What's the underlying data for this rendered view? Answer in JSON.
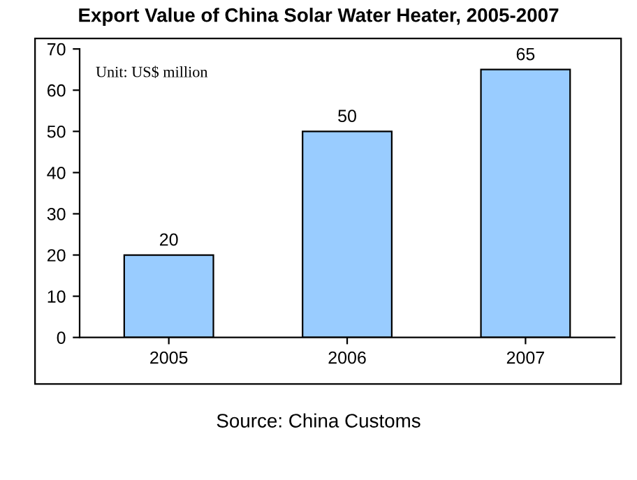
{
  "chart_data": {
    "type": "bar",
    "title": "Export Value of China Solar Water Heater, 2005-2007",
    "categories": [
      "2005",
      "2006",
      "2007"
    ],
    "values": [
      20,
      50,
      65
    ],
    "color": "#99ccff",
    "data_labels": true,
    "ylim": [
      0,
      70
    ],
    "yticks": [
      0,
      10,
      20,
      30,
      40,
      50,
      60,
      70
    ],
    "grid": false,
    "legend": false,
    "annotations": [
      "Unit: US$ million",
      "Source: China Customs"
    ]
  }
}
